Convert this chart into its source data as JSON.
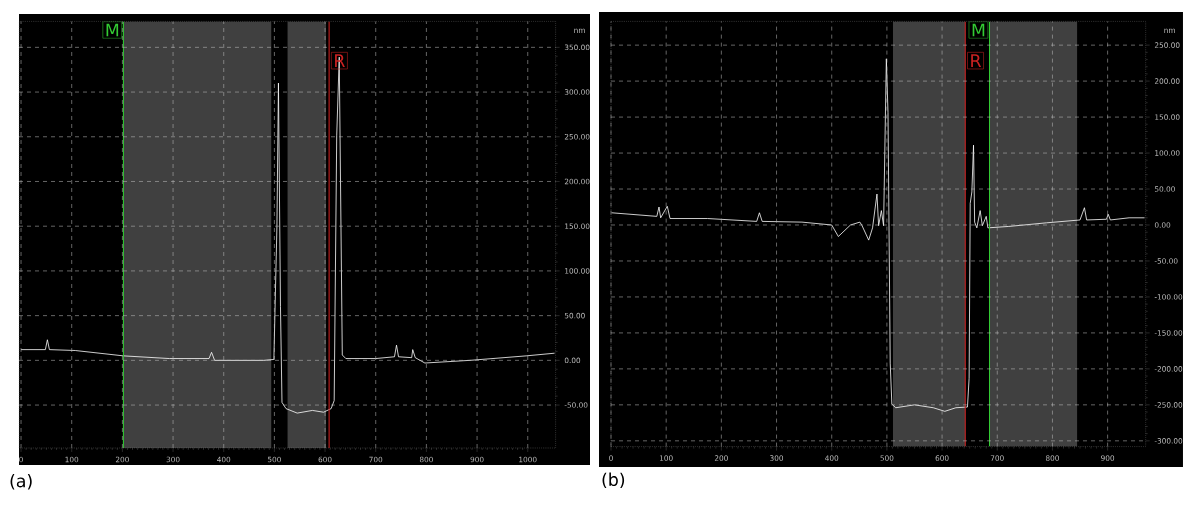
{
  "chart_data": [
    {
      "type": "line",
      "title": "(a)",
      "ylabel": "nm",
      "x": [
        0,
        48,
        52,
        56,
        107,
        202,
        293,
        371,
        376,
        382,
        479,
        499,
        505,
        508,
        512,
        515,
        523,
        545,
        575,
        597,
        612,
        618,
        623,
        628,
        634,
        641,
        700,
        737,
        741,
        745,
        771,
        773,
        778,
        797,
        886,
        997,
        1053
      ],
      "series": [
        {
          "color": "#ffffff",
          "values": [
            12,
            12,
            23,
            12,
            11,
            5,
            2,
            2,
            9,
            0,
            0,
            1,
            150,
            310,
            60,
            -47,
            -54,
            -59,
            -56,
            -58,
            -54,
            -45,
            251,
            339,
            6,
            2,
            2,
            4,
            17,
            4,
            3,
            12,
            3,
            -3,
            0,
            5,
            8
          ]
        }
      ],
      "xlim": [
        -4,
        1055
      ],
      "ylim": [
        -98,
        379
      ],
      "xticks": [
        0,
        100,
        200,
        300,
        400,
        500,
        600,
        700,
        800,
        900,
        1000
      ],
      "yticks": [
        {
          "value": -50,
          "label": "-50.00"
        },
        {
          "value": 0,
          "label": "0.00"
        },
        {
          "value": 50,
          "label": "50.00"
        },
        {
          "value": 100,
          "label": "100.00"
        },
        {
          "value": 150,
          "label": "150.00"
        },
        {
          "value": 200,
          "label": "200.00"
        },
        {
          "value": 250,
          "label": "250.00"
        },
        {
          "value": 300,
          "label": "300.00"
        },
        {
          "value": 350,
          "label": "350.00"
        }
      ],
      "bands": [
        {
          "axis": "x",
          "from": 202,
          "to": 494,
          "color": "#404040"
        },
        {
          "axis": "x",
          "from": 526,
          "to": 602,
          "color": "#404040"
        }
      ],
      "ref_lines": [
        {
          "axis": "x",
          "value": 202,
          "label": "M",
          "color": "#33cc33"
        },
        {
          "axis": "x",
          "value": 608,
          "label": "R",
          "color": "#cc2222"
        }
      ],
      "grid": true
    },
    {
      "type": "line",
      "title": "(b)",
      "ylabel": "nm",
      "x": [
        1,
        83,
        87,
        90,
        102,
        107,
        175,
        264,
        269,
        274,
        346,
        400,
        412,
        434,
        451,
        455,
        467,
        474,
        482,
        485,
        490,
        494,
        499,
        502,
        506,
        509,
        516,
        550,
        584,
        605,
        625,
        646,
        649,
        651,
        654,
        657,
        659,
        663,
        669,
        673,
        680,
        683,
        721,
        789,
        850,
        858,
        862,
        898,
        901,
        905,
        939,
        967
      ],
      "series": [
        {
          "color": "#ffffff",
          "values": [
            17,
            12,
            25,
            10,
            26,
            9,
            9,
            5,
            17,
            5,
            4,
            0,
            -16,
            0,
            4,
            -1,
            -21,
            -4,
            43,
            -1,
            20,
            -1,
            231,
            156,
            -192,
            -249,
            -254,
            -250,
            -254,
            -259,
            -254,
            -253,
            -213,
            30,
            46,
            111,
            4,
            -4,
            20,
            -1,
            12,
            -4,
            -2,
            3,
            7,
            24,
            7,
            8,
            15,
            7,
            10,
            10
          ]
        }
      ],
      "xlim": [
        0,
        969
      ],
      "ylim": [
        -308,
        283
      ],
      "xticks": [
        0,
        100,
        200,
        300,
        400,
        500,
        600,
        700,
        800,
        900
      ],
      "yticks": [
        {
          "value": -300,
          "label": "-300.00"
        },
        {
          "value": -250,
          "label": "-250.00"
        },
        {
          "value": -200,
          "label": "-200.00"
        },
        {
          "value": -150,
          "label": "-150.00"
        },
        {
          "value": -100,
          "label": "-100.00"
        },
        {
          "value": -50,
          "label": "-50.00"
        },
        {
          "value": 0,
          "label": "0.00"
        },
        {
          "value": 50,
          "label": "50.00"
        },
        {
          "value": 100,
          "label": "100.00"
        },
        {
          "value": 150,
          "label": "150.00"
        },
        {
          "value": 200,
          "label": "200.00"
        },
        {
          "value": 250,
          "label": "250.00"
        }
      ],
      "bands": [
        {
          "axis": "x",
          "from": 511,
          "to": 642,
          "color": "#404040"
        },
        {
          "axis": "x",
          "from": 686,
          "to": 845,
          "color": "#404040"
        }
      ],
      "ref_lines": [
        {
          "axis": "x",
          "value": 686,
          "label": "M",
          "color": "#33cc33"
        },
        {
          "axis": "x",
          "value": 642,
          "label": "R",
          "color": "#cc2222"
        }
      ],
      "grid": true
    }
  ]
}
